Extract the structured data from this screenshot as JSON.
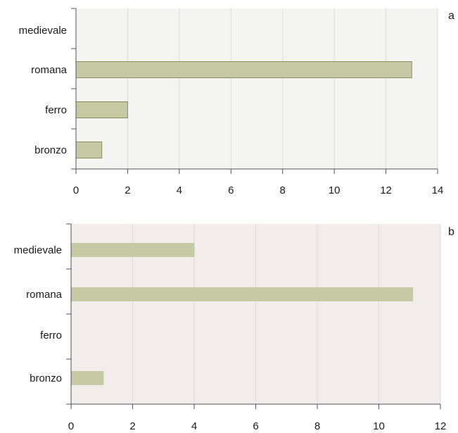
{
  "chart_data": [
    {
      "type": "bar",
      "orientation": "horizontal",
      "panel_label": "a",
      "categories": [
        "medievale",
        "romana",
        "ferro",
        "bronzo"
      ],
      "values": [
        0,
        13,
        2,
        1
      ],
      "xlim": [
        0,
        14
      ],
      "xticks": [
        "0",
        "2",
        "4",
        "6",
        "8",
        "10",
        "12",
        "14"
      ],
      "grid": "vertical",
      "colors": {
        "bar": "#c5c9a4",
        "bar_edge": "#8c8f5e",
        "background": "#f4f4f2",
        "grid": "#dcdcdc"
      }
    },
    {
      "type": "bar",
      "orientation": "horizontal",
      "panel_label": "b",
      "categories": [
        "medievale",
        "romana",
        "ferro",
        "bronzo"
      ],
      "values": [
        4,
        11.1,
        0,
        1.05
      ],
      "xlim": [
        0,
        12
      ],
      "xticks": [
        "0",
        "2",
        "4",
        "6",
        "8",
        "10",
        "12"
      ],
      "grid": "vertical",
      "colors": {
        "bar": "#c5c9a4",
        "bar_edge": "#c5c9a4",
        "background": "#f2ecea",
        "grid": "#e0dcda"
      }
    }
  ]
}
